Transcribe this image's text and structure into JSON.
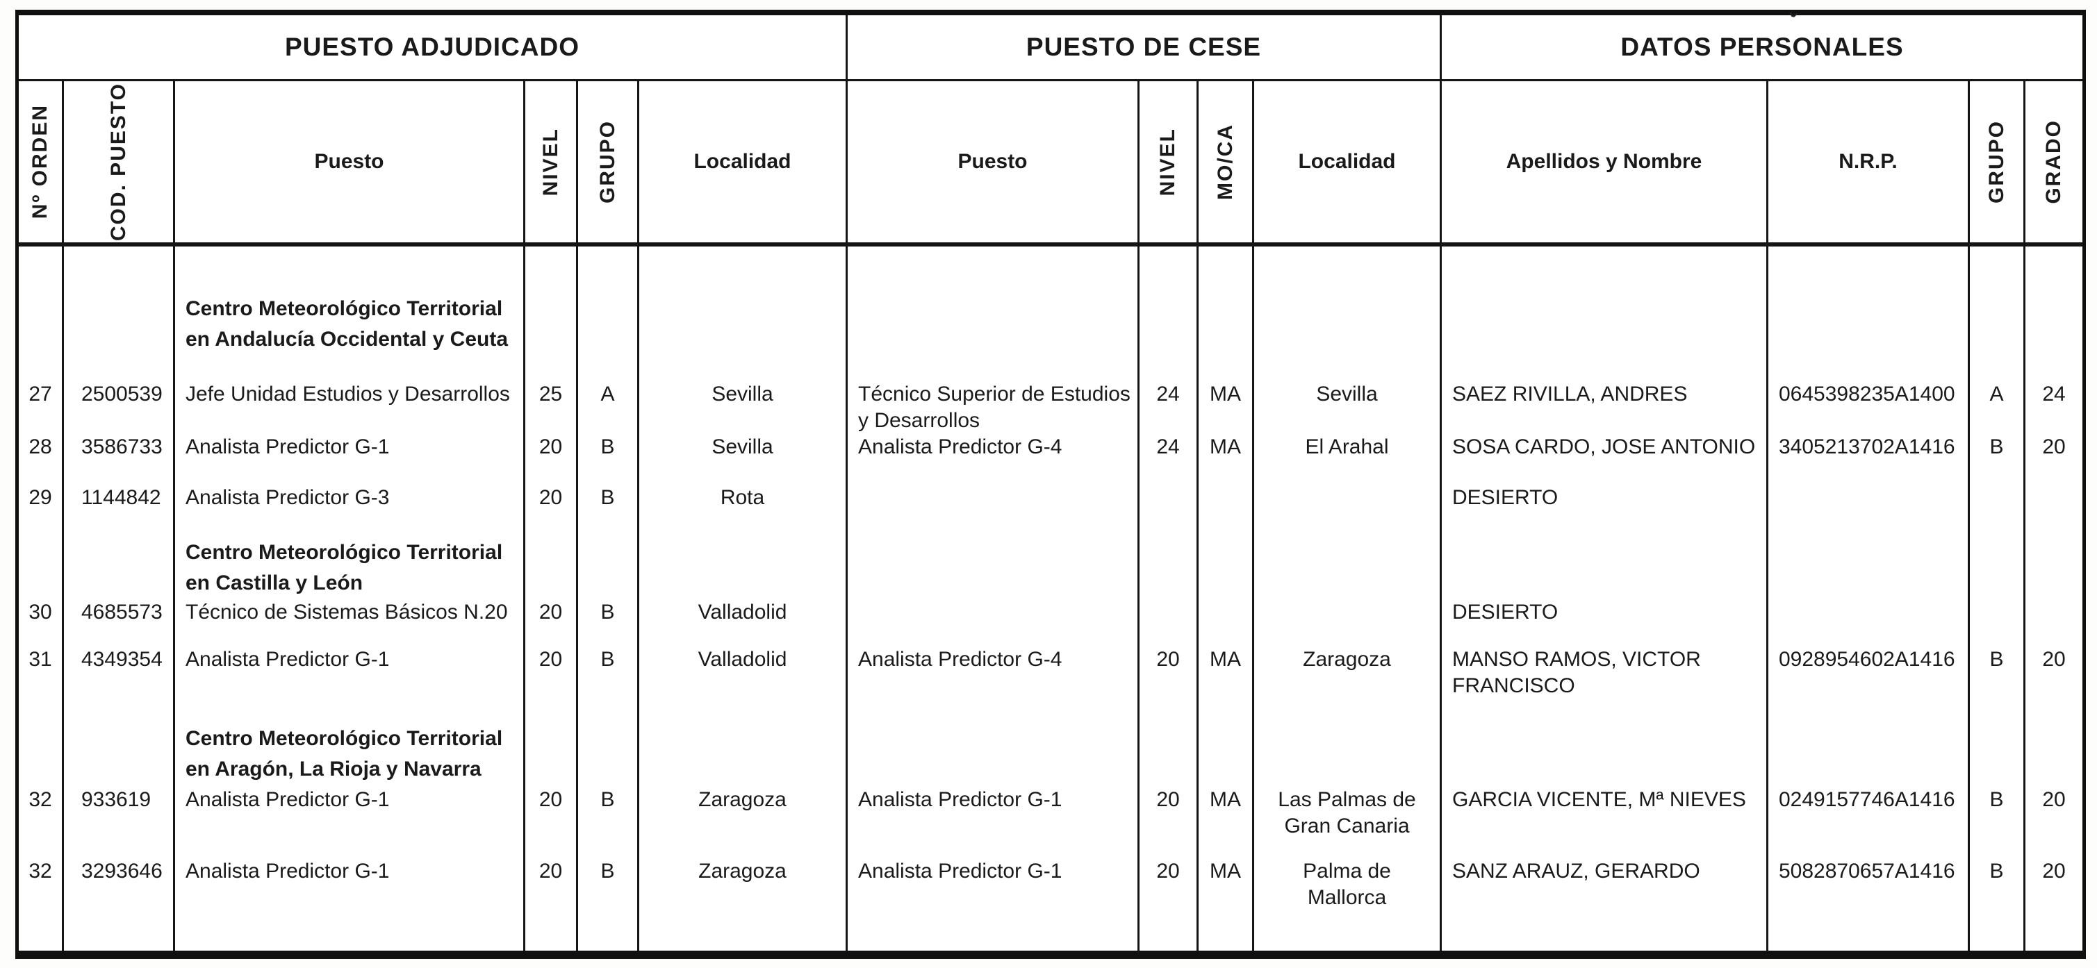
{
  "document": {
    "groups": [
      {
        "label": "PUESTO ADJUDICADO"
      },
      {
        "label": "PUESTO DE CESE"
      },
      {
        "label": "DATOS PERSONALES",
        "artifact": "ˇ"
      }
    ],
    "columns": {
      "orden": "Nº ORDEN",
      "cod": "COD. PUESTO",
      "puesto": "Puesto",
      "nivel": "NIVEL",
      "grupo": "GRUPO",
      "localidad": "Localidad",
      "cese_puesto": "Puesto",
      "cese_nivel": "NIVEL",
      "moca": "MO/CA",
      "cese_localidad": "Localidad",
      "nombre": "Apellidos y Nombre",
      "nrp": "N.R.P.",
      "dp_grupo": "GRUPO",
      "grado": "GRADO"
    },
    "rows": [
      {
        "section": "Centro Meteorológico Territorial\nen Andalucía Occidental y Ceuta"
      },
      {
        "orden": "27",
        "cod": "2500539",
        "puesto": "Jefe Unidad Estudios y Desarrollos",
        "nivel": "25",
        "grupo": "A",
        "localidad": "Sevilla",
        "cese_puesto": "Técnico Superior de Estudios\ny Desarrollos",
        "cese_nivel": "24",
        "moca": "MA",
        "cese_localidad": "Sevilla",
        "nombre": "SAEZ RIVILLA, ANDRES",
        "nrp": "0645398235A1400",
        "dp_grupo": "A",
        "grado": "24"
      },
      {
        "orden": "28",
        "cod": "3586733",
        "puesto": "Analista Predictor G-1",
        "nivel": "20",
        "grupo": "B",
        "localidad": "Sevilla",
        "cese_puesto": "Analista Predictor G-4",
        "cese_nivel": "24",
        "moca": "MA",
        "cese_localidad": "El Arahal",
        "nombre": "SOSA CARDO, JOSE ANTONIO",
        "nrp": "3405213702A1416",
        "dp_grupo": "B",
        "grado": "20"
      },
      {
        "orden": "29",
        "cod": "1144842",
        "puesto": "Analista Predictor G-3",
        "nivel": "20",
        "grupo": "B",
        "localidad": "Rota",
        "nombre": "DESIERTO"
      },
      {
        "section": "Centro Meteorológico Territorial\nen Castilla y León"
      },
      {
        "orden": "30",
        "cod": "4685573",
        "puesto": "Técnico de Sistemas Básicos N.20",
        "nivel": "20",
        "grupo": "B",
        "localidad": "Valladolid",
        "nombre": "DESIERTO"
      },
      {
        "orden": "31",
        "cod": "4349354",
        "puesto": "Analista Predictor G-1",
        "nivel": "20",
        "grupo": "B",
        "localidad": "Valladolid",
        "cese_puesto": "Analista Predictor G-4",
        "cese_nivel": "20",
        "moca": "MA",
        "cese_localidad": "Zaragoza",
        "nombre": "MANSO RAMOS, VICTOR\nFRANCISCO",
        "nrp": "0928954602A1416",
        "dp_grupo": "B",
        "grado": "20"
      },
      {
        "section": "Centro Meteorológico Territorial\nen Aragón, La Rioja y Navarra"
      },
      {
        "orden": "32",
        "cod": "933619",
        "puesto": "Analista Predictor G-1",
        "nivel": "20",
        "grupo": "B",
        "localidad": "Zaragoza",
        "cese_puesto": "Analista Predictor G-1",
        "cese_nivel": "20",
        "moca": "MA",
        "cese_localidad": "Las Palmas de\nGran Canaria",
        "nombre": "GARCIA VICENTE, Mª NIEVES",
        "nrp": "0249157746A1416",
        "dp_grupo": "B",
        "grado": "20"
      },
      {
        "orden": "32",
        "cod": "3293646",
        "puesto": "Analista Predictor G-1",
        "nivel": "20",
        "grupo": "B",
        "localidad": "Zaragoza",
        "cese_puesto": "Analista Predictor G-1",
        "cese_nivel": "20",
        "moca": "MA",
        "cese_localidad": "Palma de\nMallorca",
        "nombre": "SANZ ARAUZ, GERARDO",
        "nrp": "5082870657A1416",
        "dp_grupo": "B",
        "grado": "20"
      }
    ]
  }
}
